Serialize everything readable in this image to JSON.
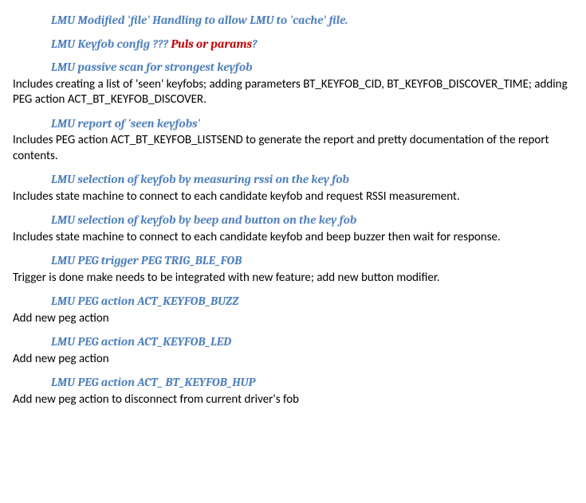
{
  "sections": [
    {
      "heading": "LMU Modified 'file' Handling to allow LMU to 'cache' file.",
      "body": ""
    },
    {
      "heading_pre": "LMU Keyfob config ??? ",
      "heading_red": "Puls or params",
      "heading_post": "?",
      "body": ""
    },
    {
      "heading": "LMU passive scan for strongest keyfob",
      "body": "Includes creating a list of 'seen' keyfobs; adding parameters BT_KEYFOB_CID, BT_KEYFOB_DISCOVER_TIME; adding PEG action ACT_BT_KEYFOB_DISCOVER."
    },
    {
      "heading": "LMU report of 'seen keyfobs'",
      "body": "Includes PEG action ACT_BT_KEYFOB_LISTSEND  to generate the report and pretty documentation of the report contents."
    },
    {
      "heading": "LMU selection of keyfob by measuring rssi on the key fob",
      "body": "Includes state machine to connect to each candidate keyfob and request RSSI measurement."
    },
    {
      "heading": "LMU selection of keyfob by beep and button on the key fob",
      "body": "Includes state machine to connect to each candidate keyfob and beep buzzer then wait for response."
    },
    {
      "heading": "LMU PEG trigger PEG TRIG_BLE_FOB",
      "body": "Trigger is done make needs to be integrated with new feature; add new button modifier."
    },
    {
      "heading": "LMU PEG action ACT_KEYFOB_BUZZ",
      "body": "Add new peg action"
    },
    {
      "heading": "LMU PEG action ACT_KEYFOB_LED",
      "body": "Add new peg action"
    },
    {
      "heading": "LMU PEG action ACT_ BT_KEYFOB_HUP",
      "body": "Add new peg action to disconnect from current driver's fob"
    }
  ]
}
